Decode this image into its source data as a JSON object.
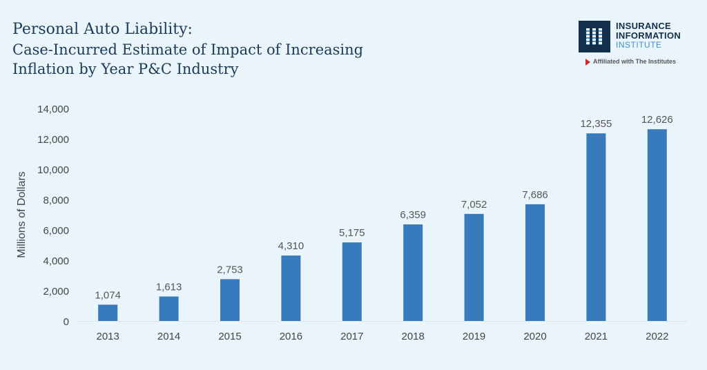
{
  "title": {
    "main": "Personal Auto Liability:",
    "sub_line1": "Case-Incurred Estimate of Impact of Increasing",
    "sub_line2": "Inflation by Year P&C Industry"
  },
  "logo": {
    "line1": "INSURANCE",
    "line2": "INFORMATION",
    "line3": "INSTITUTE",
    "affiliation": "Affiliated with The Institutes"
  },
  "colors": {
    "bar": "#377bbd",
    "text": "#444444",
    "title": "#1b3a56"
  },
  "chart_data": {
    "type": "bar",
    "title": "Personal Auto Liability: Case-Incurred Estimate of Impact of Increasing Inflation by Year P&C Industry",
    "xlabel": "",
    "ylabel": "Millions of Dollars",
    "categories": [
      "2013",
      "2014",
      "2015",
      "2016",
      "2017",
      "2018",
      "2019",
      "2020",
      "2021",
      "2022"
    ],
    "values": [
      1074,
      1613,
      2753,
      4310,
      5175,
      6359,
      7052,
      7686,
      12355,
      12626
    ],
    "value_labels": [
      "1,074",
      "1,613",
      "2,753",
      "4,310",
      "5,175",
      "6,359",
      "7,052",
      "7,686",
      "12,355",
      "12,626"
    ],
    "ylim": [
      0,
      14000
    ],
    "yticks": [
      0,
      2000,
      4000,
      6000,
      8000,
      10000,
      12000,
      14000
    ],
    "ytick_labels": [
      "0",
      "2,000",
      "4,000",
      "6,000",
      "8,000",
      "10,000",
      "12,000",
      "14,000"
    ],
    "grid": false,
    "legend": "none"
  }
}
